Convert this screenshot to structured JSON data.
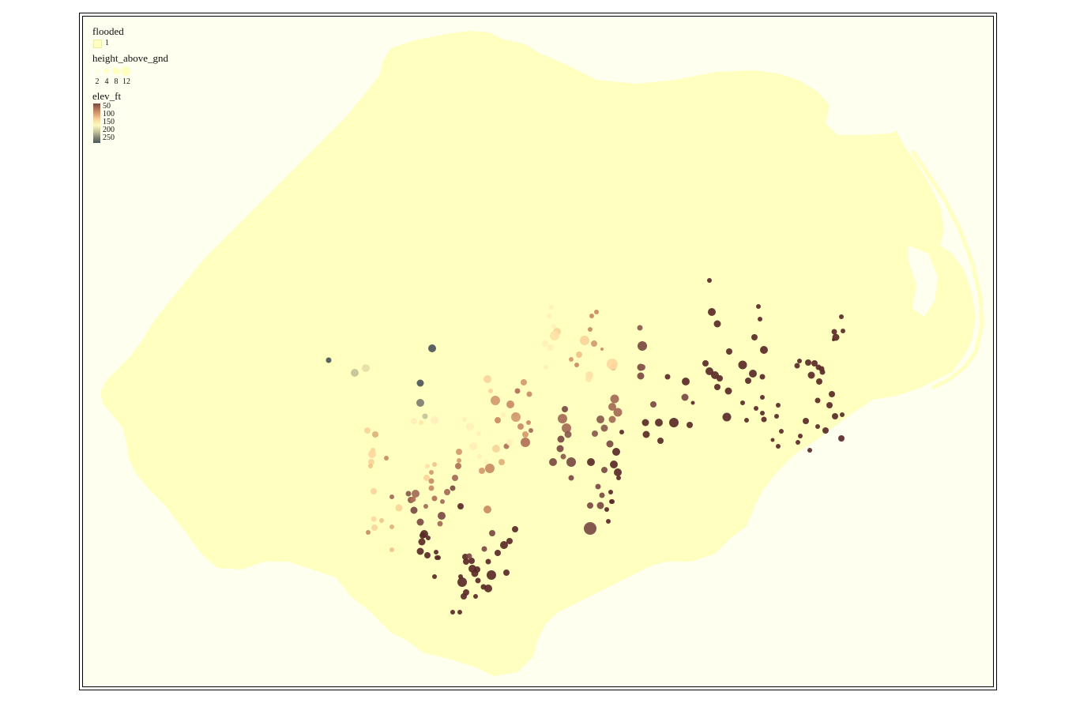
{
  "legend": {
    "flooded": {
      "title": "flooded",
      "swatch_label": "1",
      "swatch_color": "#ffffc0"
    },
    "height": {
      "title": "height_above_gnd",
      "labels": [
        "2",
        "4",
        "8",
        "12"
      ],
      "symbol_color": "#ffffc0"
    },
    "elev": {
      "title": "elev_ft",
      "labels": [
        "50",
        "100",
        "150",
        "200",
        "250"
      ]
    }
  },
  "colors": {
    "panel_background": "#fffff0",
    "land_fill": "#ffffc0",
    "frame": "#000000",
    "elev_ramp": [
      "#5a2a28",
      "#c98b64",
      "#f7d59a",
      "#fff8c0",
      "#c3c39a",
      "#4c555a"
    ]
  },
  "map_data": {
    "type": "proportional_symbol_map",
    "region_shape": "coastal plain polygon (flooded = 1)",
    "symbol_size_field": "height_above_gnd",
    "symbol_color_field": "elev_ft"
  }
}
